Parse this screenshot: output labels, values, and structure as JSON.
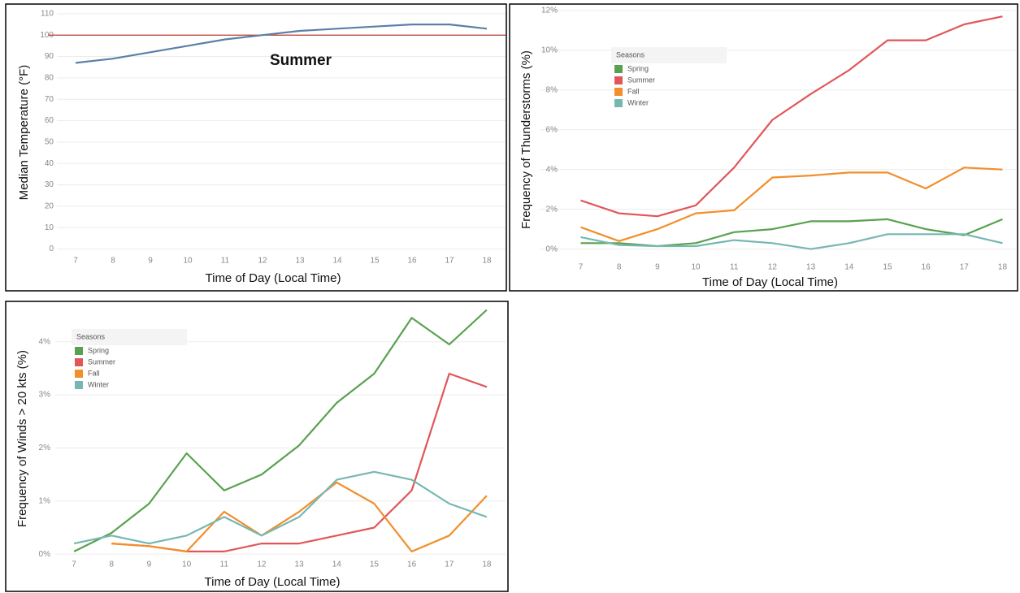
{
  "chart_data": [
    {
      "type": "line",
      "title": "Summer",
      "y_label": "Median Temperature (°F)",
      "x_label": "Time of Day (Local Time)",
      "x": [
        7,
        8,
        9,
        10,
        11,
        12,
        13,
        14,
        15,
        16,
        17,
        18
      ],
      "series": [
        {
          "color": "#5b7fa8",
          "values": [
            87,
            89,
            92,
            95,
            98,
            100,
            102,
            103,
            104,
            105,
            105,
            103
          ]
        }
      ],
      "reference_line": {
        "value": 100,
        "color": "#c0392b"
      },
      "xlim": [
        6.5,
        18.5
      ],
      "xticks": [
        7,
        8,
        9,
        10,
        11,
        12,
        13,
        14,
        15,
        16,
        17,
        18
      ],
      "ylim": [
        -4,
        113
      ],
      "yticks": [
        0,
        10,
        20,
        30,
        40,
        50,
        60,
        70,
        80,
        90,
        100,
        110
      ],
      "grid": true
    },
    {
      "type": "line",
      "y_label": "Frequency of Thunderstorms (%)",
      "x_label": "Time of Day (Local Time)",
      "legend_title": "Seasons",
      "x": [
        7,
        8,
        9,
        10,
        11,
        12,
        13,
        14,
        15,
        16,
        17,
        18
      ],
      "series": [
        {
          "name": "Spring",
          "color": "#59a14f",
          "values": [
            0.3,
            0.3,
            0.15,
            0.3,
            0.85,
            1.0,
            1.4,
            1.4,
            1.5,
            1.0,
            0.7,
            1.5
          ]
        },
        {
          "name": "Summer",
          "color": "#e15759",
          "values": [
            2.45,
            1.8,
            1.65,
            2.2,
            4.1,
            6.5,
            7.8,
            9.0,
            10.5,
            10.5,
            11.3,
            11.7
          ]
        },
        {
          "name": "Fall",
          "color": "#f28e2b",
          "values": [
            1.1,
            0.4,
            1.0,
            1.8,
            1.95,
            3.6,
            3.7,
            3.85,
            3.85,
            3.05,
            4.1,
            4.0
          ]
        },
        {
          "name": "Winter",
          "color": "#76b7b2",
          "values": [
            0.6,
            0.2,
            0.15,
            0.15,
            0.45,
            0.3,
            0.0,
            0.3,
            0.75,
            0.75,
            0.75,
            0.3
          ]
        }
      ],
      "xlim": [
        5.95,
        18.35
      ],
      "xticks": [
        7,
        8,
        9,
        10,
        11,
        12,
        13,
        14,
        15,
        16,
        17,
        18
      ],
      "ylim": [
        -1.2,
        12.2
      ],
      "yticks": [
        {
          "value": 0,
          "label": "0%"
        },
        {
          "value": 2,
          "label": "2%"
        },
        {
          "value": 4,
          "label": "4%"
        },
        {
          "value": 6,
          "label": "6%"
        },
        {
          "value": 8,
          "label": "8%"
        },
        {
          "value": 10,
          "label": "10%"
        },
        {
          "value": 12,
          "label": "12%"
        }
      ],
      "grid": true
    },
    {
      "type": "line",
      "y_label": "Frequency of Winds > 20 kts (%)",
      "x_label": "Time of Day (Local Time)",
      "legend_title": "Seasons",
      "x": [
        7,
        8,
        9,
        10,
        11,
        12,
        13,
        14,
        15,
        16,
        17,
        18
      ],
      "series": [
        {
          "name": "Spring",
          "color": "#59a14f",
          "values": [
            0.05,
            0.4,
            0.95,
            1.9,
            1.2,
            1.5,
            2.05,
            2.85,
            3.4,
            4.45,
            3.95,
            4.6
          ]
        },
        {
          "name": "Summer",
          "color": "#e15759",
          "values": [
            null,
            0.2,
            0.15,
            0.05,
            0.05,
            0.2,
            0.2,
            0.35,
            0.5,
            1.2,
            3.4,
            3.15
          ]
        },
        {
          "name": "Fall",
          "color": "#f28e2b",
          "values": [
            null,
            0.2,
            0.15,
            0.05,
            0.8,
            0.35,
            0.8,
            1.35,
            0.95,
            0.05,
            0.35,
            1.1
          ]
        },
        {
          "name": "Winter",
          "color": "#76b7b2",
          "values": [
            0.2,
            0.35,
            0.2,
            0.35,
            0.7,
            0.35,
            0.7,
            1.4,
            1.55,
            1.4,
            0.95,
            0.7
          ]
        }
      ],
      "xlim": [
        6.5,
        18.5
      ],
      "xticks": [
        7,
        8,
        9,
        10,
        11,
        12,
        13,
        14,
        15,
        16,
        17,
        18
      ],
      "ylim": [
        -0.35,
        4.7
      ],
      "yticks": [
        {
          "value": 0,
          "label": "0%"
        },
        {
          "value": 1,
          "label": "1%"
        },
        {
          "value": 2,
          "label": "2%"
        },
        {
          "value": 3,
          "label": "3%"
        },
        {
          "value": 4,
          "label": "4%"
        }
      ],
      "grid": true
    }
  ]
}
